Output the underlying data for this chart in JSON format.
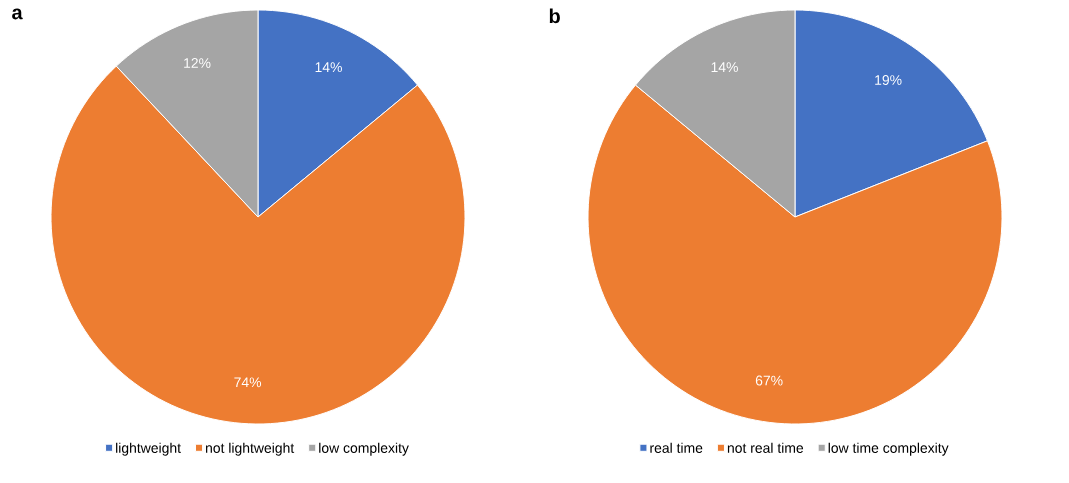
{
  "chart_data": [
    {
      "type": "pie",
      "title": "a",
      "categories": [
        "lightweight",
        "not lightweight",
        "low complexity"
      ],
      "values": [
        14,
        74,
        12
      ],
      "colors": [
        "#4472c4",
        "#ed7d31",
        "#a5a5a5"
      ],
      "value_labels": [
        "14%",
        "74%",
        "12%"
      ],
      "legend": "bottom"
    },
    {
      "type": "pie",
      "title": "b",
      "categories": [
        "real time",
        "not real time",
        "low time complexity"
      ],
      "values": [
        19,
        67,
        14
      ],
      "colors": [
        "#4472c4",
        "#ed7d31",
        "#a5a5a5"
      ],
      "value_labels": [
        "19%",
        "67%",
        "14%"
      ],
      "legend": "bottom"
    }
  ]
}
